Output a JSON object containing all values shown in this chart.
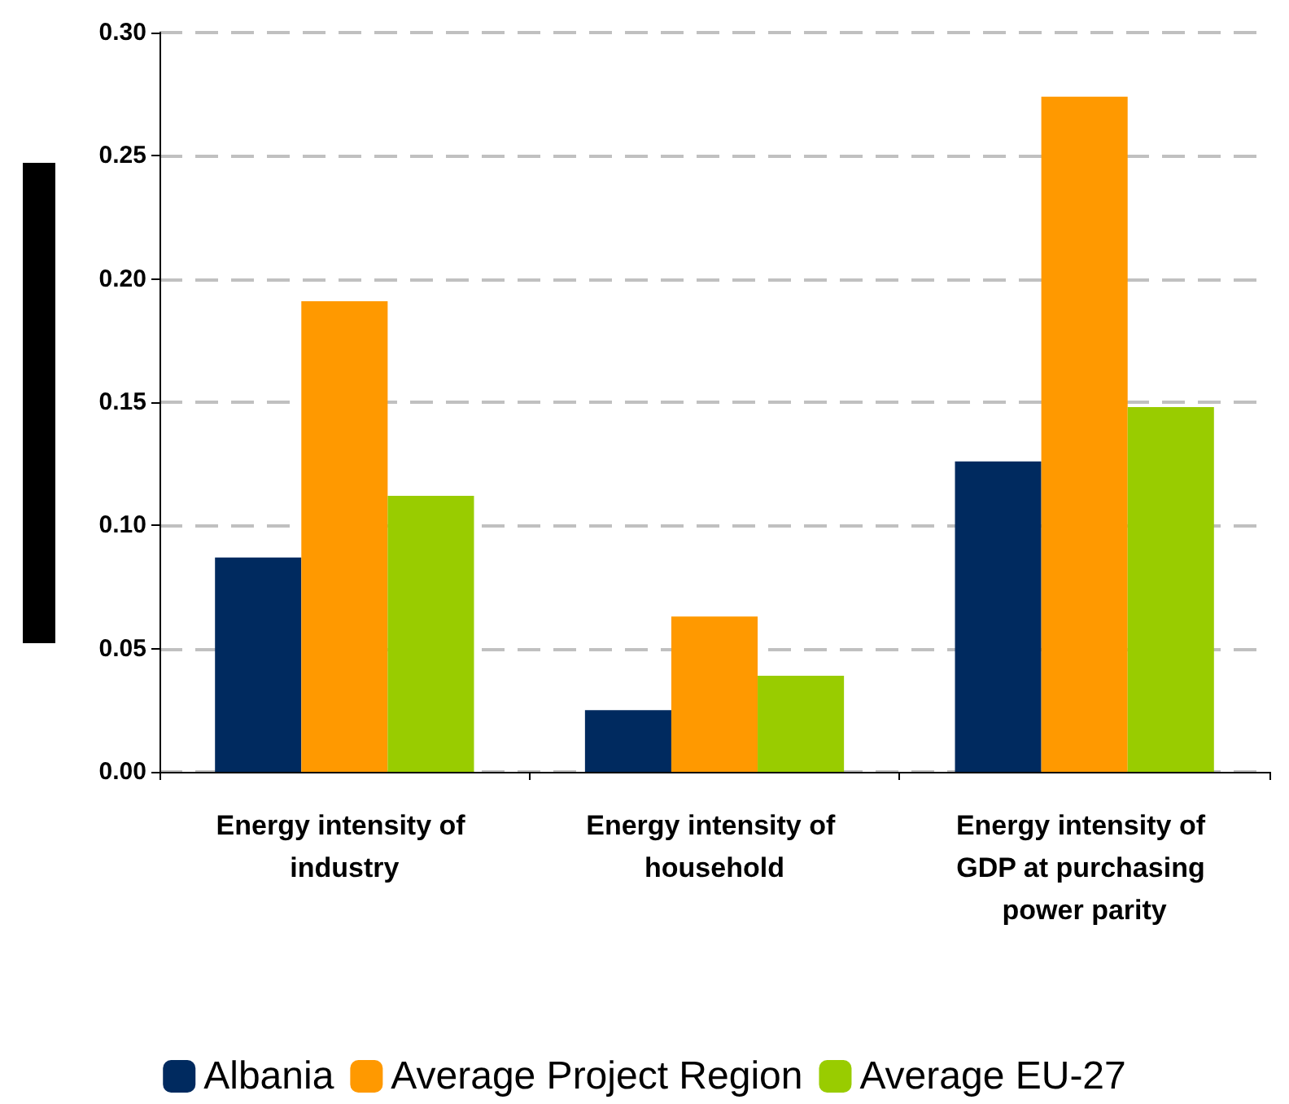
{
  "chart_data": {
    "type": "bar",
    "categories": [
      "Energy intensity of industry",
      "Energy intensity of household",
      "Energy intensity of GDP at purchasing power parity"
    ],
    "series": [
      {
        "name": "Albania",
        "color": "#002a5f",
        "values": [
          0.087,
          0.025,
          0.126
        ]
      },
      {
        "name": "Average Project Region",
        "color": "#ff9900",
        "values": [
          0.191,
          0.063,
          0.274
        ]
      },
      {
        "name": "Average EU-27",
        "color": "#99cc00",
        "values": [
          0.112,
          0.039,
          0.148
        ]
      }
    ],
    "ylim": [
      0,
      0.3
    ],
    "yticks": [
      {
        "value": 0,
        "label": "0.00"
      },
      {
        "value": 0.05,
        "label": "0.05"
      },
      {
        "value": 0.1,
        "label": "0.10"
      },
      {
        "value": 0.15,
        "label": "0.15"
      },
      {
        "value": 0.2,
        "label": "0.20"
      },
      {
        "value": 0.25,
        "label": "0.25"
      },
      {
        "value": 0.3,
        "label": "0.30"
      }
    ],
    "grid": "y",
    "legend": "bottom"
  }
}
